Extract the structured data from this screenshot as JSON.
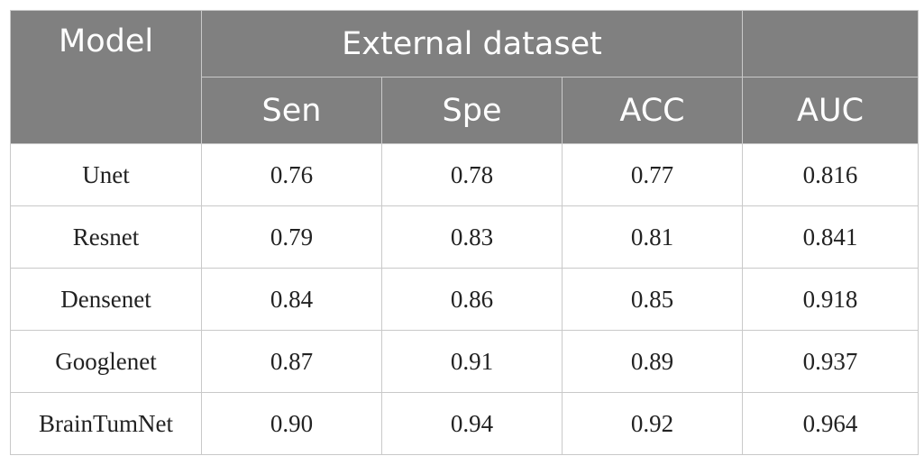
{
  "table": {
    "header": {
      "model": "Model",
      "group": "External dataset",
      "metrics": [
        "Sen",
        "Spe",
        "ACC"
      ],
      "auc": "AUC"
    },
    "rows": [
      {
        "model": "Unet",
        "sen": "0.76",
        "spe": "0.78",
        "acc": "0.77",
        "auc": "0.816"
      },
      {
        "model": "Resnet",
        "sen": "0.79",
        "spe": "0.83",
        "acc": "0.81",
        "auc": "0.841"
      },
      {
        "model": "Densenet",
        "sen": "0.84",
        "spe": "0.86",
        "acc": "0.85",
        "auc": "0.918"
      },
      {
        "model": "Googlenet",
        "sen": "0.87",
        "spe": "0.91",
        "acc": "0.89",
        "auc": "0.937"
      },
      {
        "model": "BrainTumNet",
        "sen": "0.90",
        "spe": "0.94",
        "acc": "0.92",
        "auc": "0.964"
      }
    ]
  },
  "colors": {
    "header_bg": "#808080",
    "header_text": "#ffffff",
    "border": "#c9c9c9"
  }
}
